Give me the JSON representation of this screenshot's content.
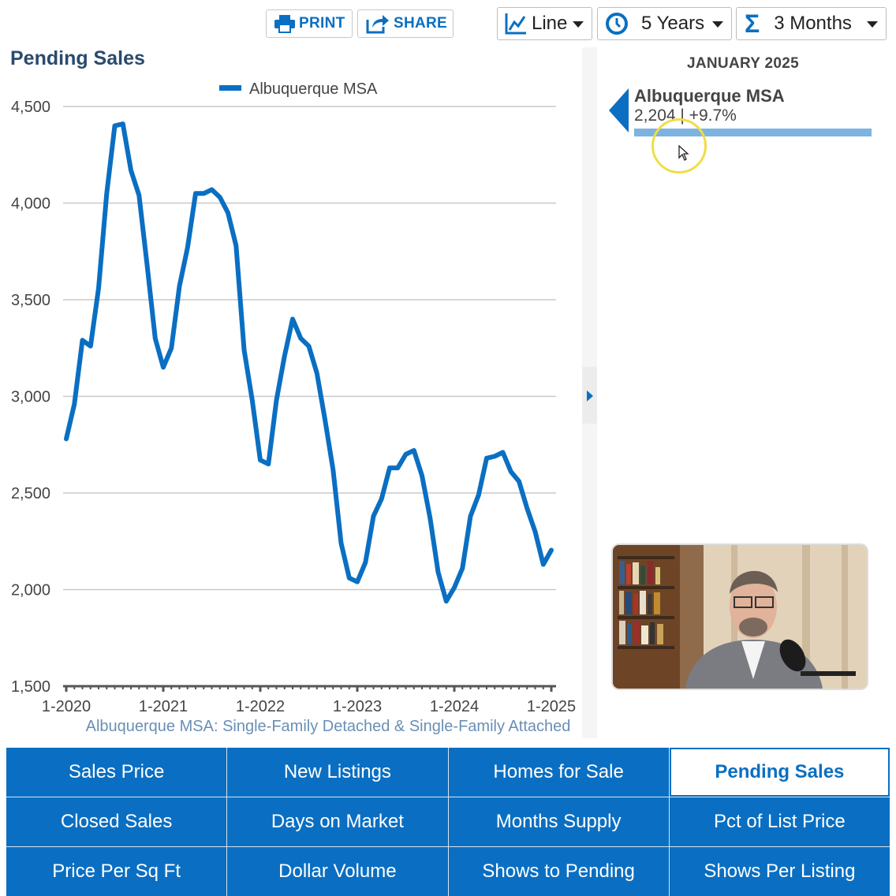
{
  "toolbar": {
    "print_label": "PRINT",
    "share_label": "SHARE",
    "chart_type": "Line",
    "time_range": "5 Years",
    "rolling_avg": "3 Months"
  },
  "chart": {
    "title": "Pending Sales",
    "legend_label": "Albuquerque MSA",
    "footnote": "Albuquerque MSA: Single-Family Detached & Single-Family Attached",
    "line_color": "#0a6fc2"
  },
  "side_panel": {
    "month": "JANUARY 2025",
    "region": "Albuquerque MSA",
    "value_line": "2,204 | +9.7%",
    "bar_color": "#7db3e0"
  },
  "nav": [
    {
      "label": "Sales Price",
      "active": false
    },
    {
      "label": "New Listings",
      "active": false
    },
    {
      "label": "Homes for Sale",
      "active": false
    },
    {
      "label": "Pending Sales",
      "active": true
    },
    {
      "label": "Closed Sales",
      "active": false
    },
    {
      "label": "Days on Market",
      "active": false
    },
    {
      "label": "Months Supply",
      "active": false
    },
    {
      "label": "Pct of List Price",
      "active": false
    },
    {
      "label": "Price Per Sq Ft",
      "active": false
    },
    {
      "label": "Dollar Volume",
      "active": false
    },
    {
      "label": "Shows to Pending",
      "active": false
    },
    {
      "label": "Shows Per Listing",
      "active": false
    }
  ],
  "chart_data": {
    "type": "line",
    "title": "Pending Sales",
    "xlabel": "",
    "ylabel": "",
    "ylim": [
      1500,
      4500
    ],
    "yticks": [
      1500,
      2000,
      2500,
      3000,
      3500,
      4000,
      4500
    ],
    "ytick_labels": [
      "1,500",
      "2,000",
      "2,500",
      "3,000",
      "3,500",
      "4,000",
      "4,500"
    ],
    "xtick_labels": [
      "1-2020",
      "1-2021",
      "1-2022",
      "1-2023",
      "1-2024",
      "1-2025"
    ],
    "grid": true,
    "legend": "top-center",
    "series": [
      {
        "name": "Albuquerque MSA",
        "x": [
          "2020-01",
          "2020-02",
          "2020-03",
          "2020-04",
          "2020-05",
          "2020-06",
          "2020-07",
          "2020-08",
          "2020-09",
          "2020-10",
          "2020-11",
          "2020-12",
          "2021-01",
          "2021-02",
          "2021-03",
          "2021-04",
          "2021-05",
          "2021-06",
          "2021-07",
          "2021-08",
          "2021-09",
          "2021-10",
          "2021-11",
          "2021-12",
          "2022-01",
          "2022-02",
          "2022-03",
          "2022-04",
          "2022-05",
          "2022-06",
          "2022-07",
          "2022-08",
          "2022-09",
          "2022-10",
          "2022-11",
          "2022-12",
          "2023-01",
          "2023-02",
          "2023-03",
          "2023-04",
          "2023-05",
          "2023-06",
          "2023-07",
          "2023-08",
          "2023-09",
          "2023-10",
          "2023-11",
          "2023-12",
          "2024-01",
          "2024-02",
          "2024-03",
          "2024-04",
          "2024-05",
          "2024-06",
          "2024-07",
          "2024-08",
          "2024-09",
          "2024-10",
          "2024-11",
          "2024-12",
          "2025-01"
        ],
        "values": [
          2780,
          2960,
          3290,
          3260,
          3560,
          4050,
          4400,
          4410,
          4170,
          4040,
          3680,
          3300,
          3150,
          3250,
          3570,
          3770,
          4050,
          4050,
          4070,
          4030,
          3950,
          3780,
          3240,
          2980,
          2670,
          2650,
          2980,
          3210,
          3400,
          3300,
          3260,
          3120,
          2880,
          2620,
          2240,
          2060,
          2040,
          2140,
          2380,
          2470,
          2630,
          2630,
          2700,
          2720,
          2590,
          2370,
          2090,
          1940,
          2010,
          2110,
          2380,
          2490,
          2680,
          2690,
          2710,
          2610,
          2560,
          2420,
          2300,
          2130,
          2204
        ]
      }
    ]
  }
}
